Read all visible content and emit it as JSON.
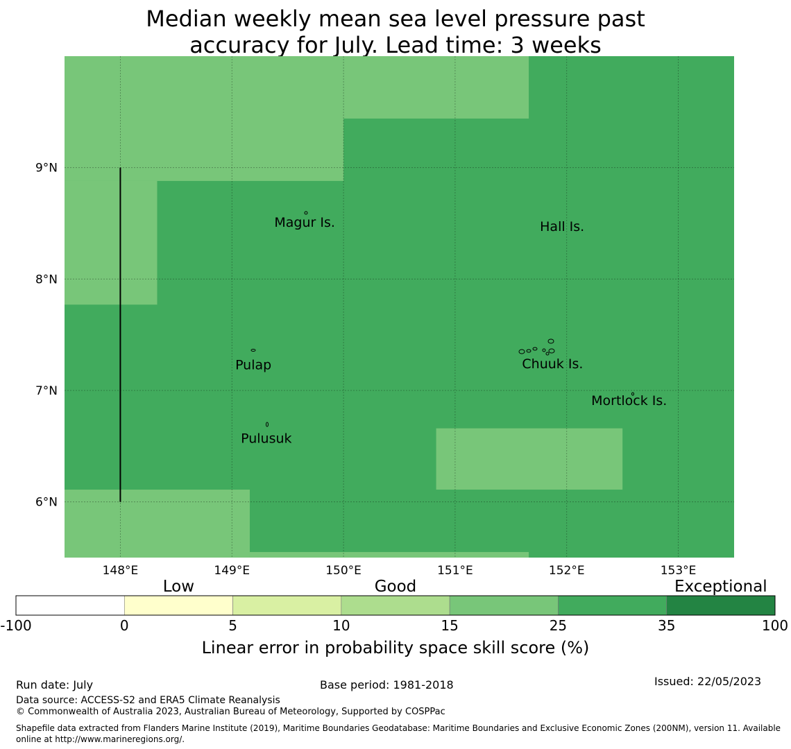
{
  "title": {
    "line1": "Median weekly mean sea level pressure past",
    "line2": "accuracy for July. Lead time: 3 weeks"
  },
  "map": {
    "lon_range": [
      147.5,
      153.5
    ],
    "lat_range": [
      5.5,
      10.0
    ],
    "lon_ticks": [
      {
        "value": 148,
        "label": "148°E"
      },
      {
        "value": 149,
        "label": "149°E"
      },
      {
        "value": 150,
        "label": "150°E"
      },
      {
        "value": 151,
        "label": "151°E"
      },
      {
        "value": 152,
        "label": "152°E"
      },
      {
        "value": 153,
        "label": "153°E"
      }
    ],
    "lat_ticks": [
      {
        "value": 9,
        "label": "9°N"
      },
      {
        "value": 8,
        "label": "8°N"
      },
      {
        "value": 7,
        "label": "7°N"
      },
      {
        "value": 6,
        "label": "6°N"
      }
    ],
    "base_color": "#41ab5d",
    "light_regions": [
      {
        "lon": [
          147.5,
          150.0
        ],
        "lat": [
          8.88,
          10.0
        ],
        "color": "#78c679"
      },
      {
        "lon": [
          150.0,
          151.66
        ],
        "lat": [
          9.44,
          10.0
        ],
        "color": "#78c679"
      },
      {
        "lon": [
          147.5,
          148.33
        ],
        "lat": [
          7.77,
          8.88
        ],
        "color": "#78c679"
      },
      {
        "lon": [
          147.5,
          149.16
        ],
        "lat": [
          5.5,
          6.11
        ],
        "color": "#78c679"
      },
      {
        "lon": [
          149.16,
          151.66
        ],
        "lat": [
          5.5,
          5.55
        ],
        "color": "#78c679"
      },
      {
        "lon": [
          150.83,
          152.5
        ],
        "lat": [
          6.11,
          6.66
        ],
        "color": "#78c679"
      }
    ],
    "boundary_line": {
      "lon": 148.0,
      "lat": [
        6.0,
        9.0
      ]
    },
    "places": [
      {
        "name": "Magur Is.",
        "lon": 149.38,
        "lat": 8.47
      },
      {
        "name": "Hall Is.",
        "lon": 151.76,
        "lat": 8.43
      },
      {
        "name": "Pulap",
        "lon": 149.03,
        "lat": 7.19
      },
      {
        "name": "Chuuk Is.",
        "lon": 151.6,
        "lat": 7.2
      },
      {
        "name": "Mortlock Is.",
        "lon": 152.22,
        "lat": 6.87
      },
      {
        "name": "Pulusuk",
        "lon": 149.08,
        "lat": 6.53
      }
    ]
  },
  "colorbar": {
    "category_labels": [
      "Low",
      "Good",
      "Exceptional"
    ],
    "segments": [
      {
        "from": "-100",
        "to": "0",
        "color": "#ffffff"
      },
      {
        "from": "0",
        "to": "5",
        "color": "#ffffcc"
      },
      {
        "from": "5",
        "to": "10",
        "color": "#d9f0a3"
      },
      {
        "from": "10",
        "to": "15",
        "color": "#addd8e"
      },
      {
        "from": "15",
        "to": "25",
        "color": "#78c679"
      },
      {
        "from": "25",
        "to": "35",
        "color": "#41ab5d"
      },
      {
        "from": "35",
        "to": "100",
        "color": "#238443"
      }
    ],
    "tick_labels": [
      "-100",
      "0",
      "5",
      "10",
      "15",
      "25",
      "35",
      "100"
    ],
    "label": "Linear error in probability space skill score (%)"
  },
  "footer": {
    "run_date": "Run date: July",
    "base_period": "Base period: 1981-2018",
    "issued": "Issued: 22/05/2023",
    "data_source": "Data source: ACCESS-S2 and ERA5 Climate Reanalysis",
    "copyright": "© Commonwealth of Australia 2023, Australian Bureau of Meteorology, Supported by COSPPac",
    "shapefile": "Shapefile data extracted from Flanders Marine Institute (2019), Maritime Boundaries Geodatabase: Maritime Boundaries and Exclusive Economic Zones (200NM), version 11. Available online at http://www.marineregions.org/."
  }
}
